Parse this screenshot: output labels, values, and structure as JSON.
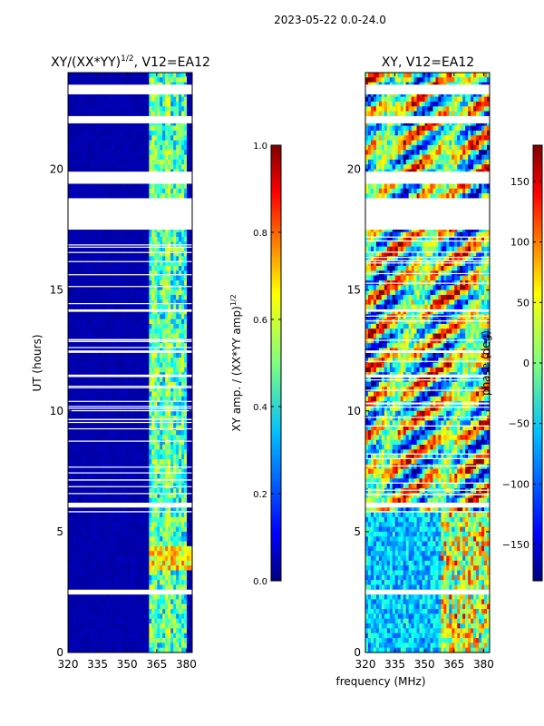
{
  "suptitle": "2023-05-22 0.0-24.0",
  "chart_data": [
    {
      "type": "heatmap",
      "title_main": "XY/(XX*YY)",
      "title_exp": "1/2",
      "title_tail": ", V12=EA12",
      "xlabel": "",
      "ylabel": "UT (hours)",
      "xlim": [
        320,
        383
      ],
      "ylim": [
        0,
        24
      ],
      "xticks": [
        "320",
        "335",
        "350",
        "365",
        "380"
      ],
      "yticks": [
        "0",
        "5",
        "10",
        "15",
        "20"
      ],
      "colorbar": {
        "label_main": "XY amp. / (XX*YY amp)",
        "label_exp": "1/2",
        "range": [
          0.0,
          1.0
        ],
        "ticks": [
          "0.0",
          "0.2",
          "0.4",
          "0.6",
          "0.8",
          "1.0"
        ],
        "colormap": "jet"
      }
    },
    {
      "type": "heatmap",
      "title": "XY, V12=EA12",
      "xlabel": "frequency (MHz)",
      "ylabel": "",
      "xlim": [
        320,
        383
      ],
      "ylim": [
        0,
        24
      ],
      "xticks": [
        "320",
        "335",
        "350",
        "365",
        "380"
      ],
      "yticks": [
        "0",
        "5",
        "10",
        "15",
        "20"
      ],
      "colorbar": {
        "label": "phase (deg)",
        "range": [
          -180,
          180
        ],
        "ticks": [
          "150",
          "100",
          "50",
          "0",
          "−50",
          "−100",
          "−150"
        ],
        "colormap": "jet"
      }
    }
  ],
  "colors": {
    "jet": [
      "#00007f",
      "#0000ff",
      "#007fff",
      "#00ffff",
      "#7fff7f",
      "#ffff00",
      "#ff7f00",
      "#ff0000",
      "#7f0000"
    ],
    "axis": "#000000",
    "gap": "#ffffff"
  }
}
